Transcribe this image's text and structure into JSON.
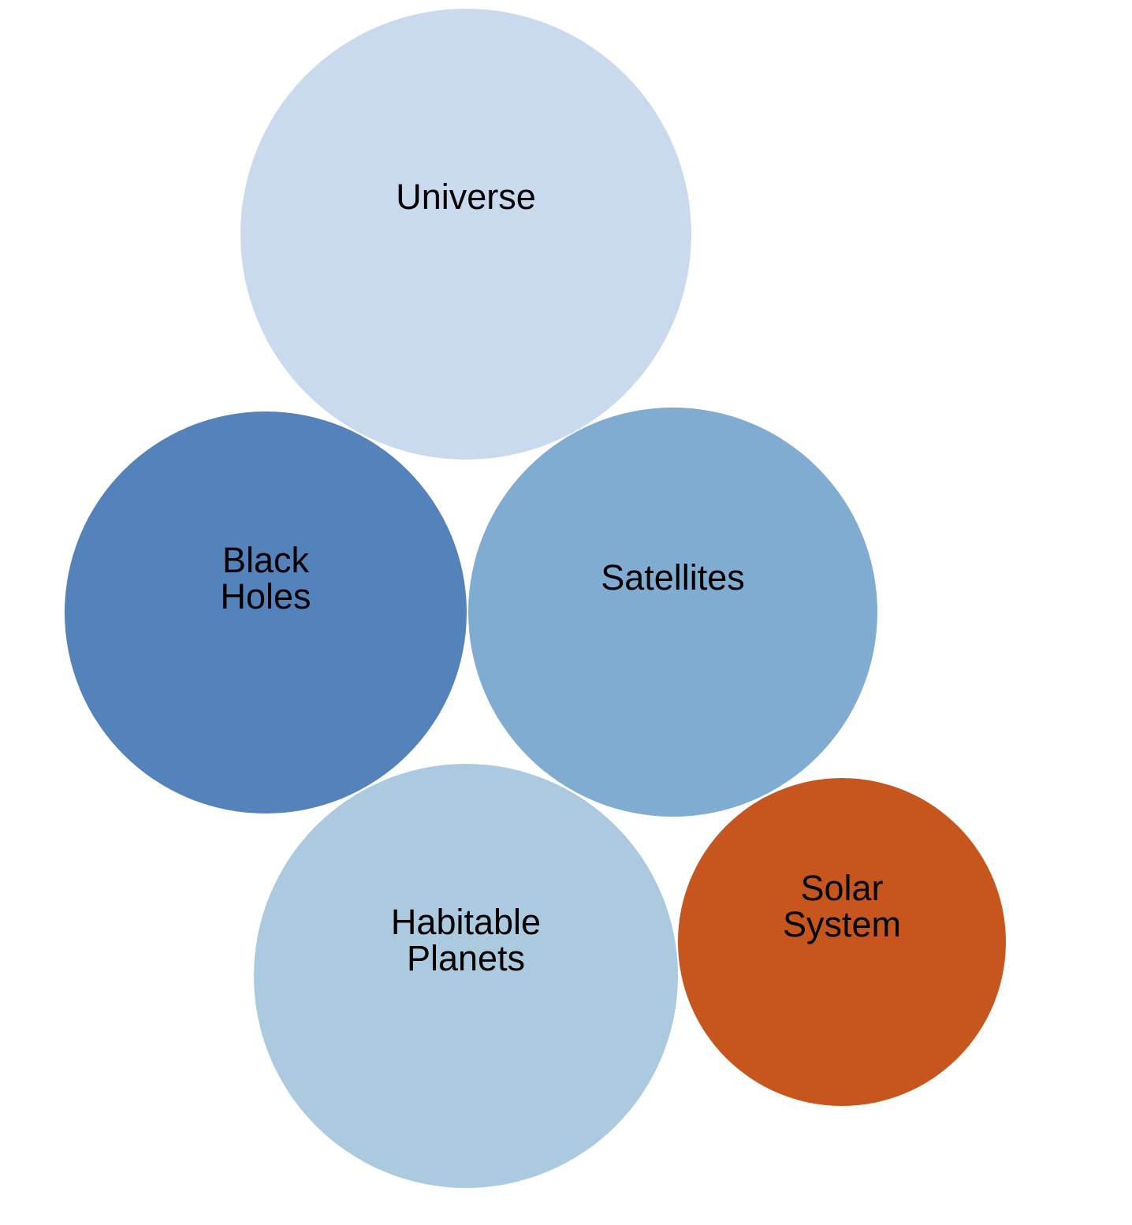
{
  "diagram": {
    "bubbles": [
      {
        "id": "universe",
        "label": "Universe",
        "color": "#c9d9ee"
      },
      {
        "id": "black-holes",
        "label": "Black\nHoles",
        "color": "#5383ba"
      },
      {
        "id": "satellites",
        "label": "Satellites",
        "color": "#81acd2"
      },
      {
        "id": "habitable-planets",
        "label": "Habitable\nPlanets",
        "color": "#abc9df"
      },
      {
        "id": "solar-system",
        "label": "Solar\nSystem",
        "color": "#c6561e"
      }
    ]
  }
}
